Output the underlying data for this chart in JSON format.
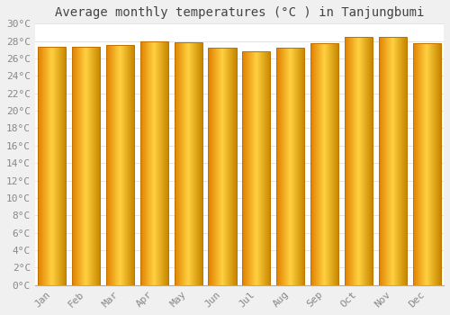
{
  "title": "Average monthly temperatures (°C ) in Tanjungbumi",
  "months": [
    "Jan",
    "Feb",
    "Mar",
    "Apr",
    "May",
    "Jun",
    "Jul",
    "Aug",
    "Sep",
    "Oct",
    "Nov",
    "Dec"
  ],
  "values": [
    27.3,
    27.3,
    27.5,
    28.0,
    27.9,
    27.2,
    26.8,
    27.2,
    27.8,
    28.5,
    28.5,
    27.8
  ],
  "ylim": [
    0,
    30
  ],
  "yticks": [
    0,
    2,
    4,
    6,
    8,
    10,
    12,
    14,
    16,
    18,
    20,
    22,
    24,
    26,
    28,
    30
  ],
  "bar_color_left": "#E08000",
  "bar_color_center": "#FFD040",
  "bar_color_right": "#E89000",
  "bar_edge_color": "#C07000",
  "background_color": "#f0f0f0",
  "plot_bg_color": "#ffffff",
  "grid_color": "#d8d8d8",
  "title_fontsize": 10,
  "tick_fontsize": 8,
  "font_family": "monospace",
  "gradient_steps": 50
}
